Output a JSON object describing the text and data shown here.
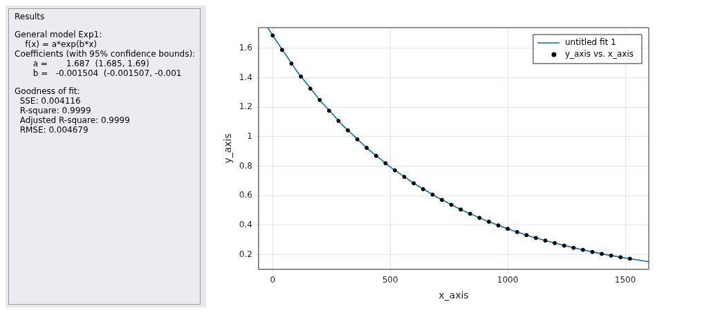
{
  "chart_data": {
    "type": "scatter",
    "xlabel": "x_axis",
    "ylabel": "y_axis",
    "xlim": [
      -60,
      1600
    ],
    "ylim": [
      0.1,
      1.74
    ],
    "xticks": [
      0,
      500,
      1000,
      1500
    ],
    "yticks": [
      0.2,
      0.4,
      0.6,
      0.8,
      1,
      1.2,
      1.4,
      1.6
    ],
    "grid": true,
    "legend": "top right",
    "annotations": [
      "Results",
      "General model Exp1:",
      "    f(x) = a*exp(b*x)",
      "Coefficients (with 95% confidence bounds):",
      "       a =       1.687  (1.685, 1.69)",
      "       b =   -0.001504  (-0.001507, -0.001",
      "Goodness of fit:",
      "  SSE: 0.004116",
      "  R-square: 0.9999",
      "  Adjusted R-square: 0.9999",
      "  RMSE: 0.004679"
    ],
    "series": [
      {
        "name": "untitled fit 1",
        "type": "line",
        "color": "#0072bd",
        "marker": "none",
        "x": [
          -20,
          0,
          100,
          200,
          300,
          400,
          500,
          600,
          700,
          800,
          900,
          1000,
          1100,
          1200,
          1300,
          1400,
          1500,
          1600
        ],
        "values": [
          1.738,
          1.687,
          1.451,
          1.249,
          1.074,
          0.924,
          0.795,
          0.684,
          0.589,
          0.506,
          0.436,
          0.375,
          0.322,
          0.278,
          0.239,
          0.205,
          0.177,
          0.152
        ]
      },
      {
        "name": "y_axis vs. x_axis",
        "type": "scatter",
        "color": "#000000",
        "marker": "circle",
        "x": [
          0,
          40,
          80,
          120,
          160,
          200,
          240,
          280,
          320,
          360,
          400,
          440,
          480,
          520,
          560,
          600,
          640,
          680,
          720,
          760,
          800,
          840,
          880,
          920,
          960,
          1000,
          1040,
          1080,
          1120,
          1160,
          1200,
          1240,
          1280,
          1320,
          1360,
          1400,
          1440,
          1480,
          1520
        ],
        "values": [
          1.687,
          1.589,
          1.496,
          1.408,
          1.326,
          1.249,
          1.176,
          1.107,
          1.043,
          0.982,
          0.924,
          0.87,
          0.82,
          0.772,
          0.727,
          0.684,
          0.644,
          0.607,
          0.571,
          0.538,
          0.506,
          0.477,
          0.449,
          0.423,
          0.398,
          0.375,
          0.353,
          0.332,
          0.313,
          0.295,
          0.278,
          0.261,
          0.246,
          0.232,
          0.218,
          0.205,
          0.193,
          0.182,
          0.172
        ]
      }
    ]
  }
}
